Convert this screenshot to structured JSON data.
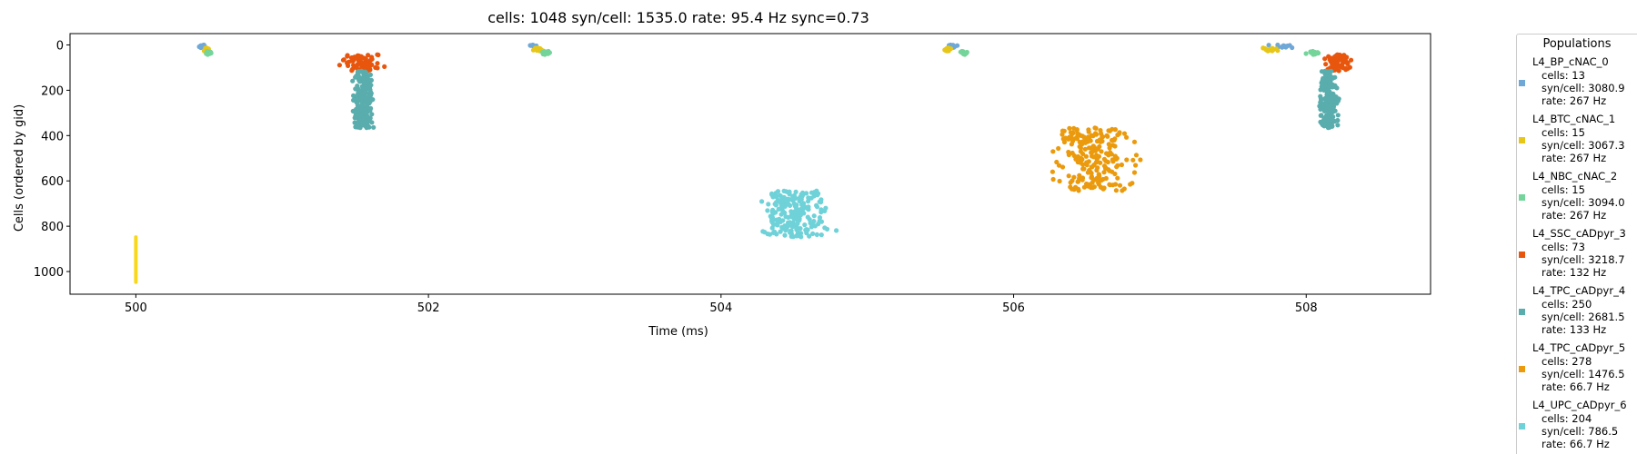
{
  "chart_data": {
    "type": "scatter",
    "title": "cells: 1048   syn/cell: 1535.0   rate: 95.4 Hz    sync=0.73",
    "xlabel": "Time (ms)",
    "ylabel": "Cells (ordered by gid)",
    "xlim": [
      499.55,
      508.85
    ],
    "ylim": [
      1100,
      -50
    ],
    "xticks": [
      500,
      502,
      504,
      506,
      508
    ],
    "yticks": [
      0,
      200,
      400,
      600,
      800,
      1000
    ],
    "grid": false,
    "legend": {
      "title": "Populations",
      "placement": "outside-right",
      "entries": [
        {
          "name": "L4_BP_cNAC_0",
          "cells": "cells: 13",
          "syn": "syn/cell: 3080.9",
          "rate": "rate: 267 Hz",
          "color": "#6fa8d6"
        },
        {
          "name": "L4_BTC_cNAC_1",
          "cells": "cells: 15",
          "syn": "syn/cell: 3067.3",
          "rate": "rate: 267 Hz",
          "color": "#e6c619"
        },
        {
          "name": "L4_NBC_cNAC_2",
          "cells": "cells: 15",
          "syn": "syn/cell: 3094.0",
          "rate": "rate: 267 Hz",
          "color": "#74d49a"
        },
        {
          "name": "L4_SSC_cADpyr_3",
          "cells": "cells: 73",
          "syn": "syn/cell: 3218.7",
          "rate": "rate: 132 Hz",
          "color": "#e8560e"
        },
        {
          "name": "L4_TPC_cADpyr_4",
          "cells": "cells: 250",
          "syn": "syn/cell: 2681.5",
          "rate": "rate: 133 Hz",
          "color": "#5aadad"
        },
        {
          "name": "L4_TPC_cADpyr_5",
          "cells": "cells: 278",
          "syn": "syn/cell: 1476.5",
          "rate": "rate: 66.7 Hz",
          "color": "#ea9a0c"
        },
        {
          "name": "L4_UPC_cADpyr_6",
          "cells": "cells: 204",
          "syn": "syn/cell: 786.5",
          "rate": "rate: 66.7 Hz",
          "color": "#6ed2d8"
        }
      ]
    },
    "series": [
      {
        "population": "L4_BP_cNAC_0",
        "color": "#6fa8d6",
        "gid_range": [
          0,
          12
        ],
        "bursts": [
          {
            "t": 500.45,
            "t_sd": 0.03
          },
          {
            "t": 502.72,
            "t_sd": 0.03
          },
          {
            "t": 505.58,
            "t_sd": 0.03
          },
          {
            "t": 507.85,
            "t_sd": 0.08
          }
        ]
      },
      {
        "population": "L4_BTC_cNAC_1",
        "color": "#e6c619",
        "gid_range": [
          13,
          27
        ],
        "bursts": [
          {
            "t": 500.48,
            "t_sd": 0.02
          },
          {
            "t": 502.75,
            "t_sd": 0.03
          },
          {
            "t": 505.55,
            "t_sd": 0.02
          },
          {
            "t": 507.75,
            "t_sd": 0.05
          }
        ]
      },
      {
        "population": "L4_NBC_cNAC_2",
        "color": "#74d49a",
        "gid_range": [
          28,
          42
        ],
        "bursts": [
          {
            "t": 500.5,
            "t_sd": 0.02
          },
          {
            "t": 502.8,
            "t_sd": 0.03
          },
          {
            "t": 505.65,
            "t_sd": 0.03
          },
          {
            "t": 508.05,
            "t_sd": 0.04
          }
        ]
      },
      {
        "population": "L4_SSC_cADpyr_3",
        "color": "#e8560e",
        "gid_range": [
          43,
          115
        ],
        "bursts": [
          {
            "t": 501.55,
            "t_sd": 0.12
          },
          {
            "t": 508.22,
            "t_sd": 0.08
          }
        ]
      },
      {
        "population": "L4_TPC_cADpyr_4",
        "color": "#5aadad",
        "gid_range": [
          116,
          365
        ],
        "bursts": [
          {
            "t": 501.55,
            "t_sd": 0.06
          },
          {
            "t": 508.15,
            "t_sd": 0.06
          }
        ]
      },
      {
        "population": "L4_TPC_cADpyr_5",
        "color": "#ea9a0c",
        "gid_range": [
          366,
          643
        ],
        "bursts": [
          {
            "t": 506.55,
            "t_sd": 0.25
          }
        ]
      },
      {
        "population": "L4_UPC_cADpyr_6",
        "color": "#6ed2d8",
        "gid_range": [
          644,
          847
        ],
        "bursts": [
          {
            "t": 504.5,
            "t_sd": 0.22
          }
        ]
      },
      {
        "population": "other",
        "color": "#f9d81c",
        "gid_range": [
          848,
          1047
        ],
        "bursts": [
          {
            "t": 500.0,
            "t_sd": 0.0
          }
        ]
      }
    ]
  }
}
